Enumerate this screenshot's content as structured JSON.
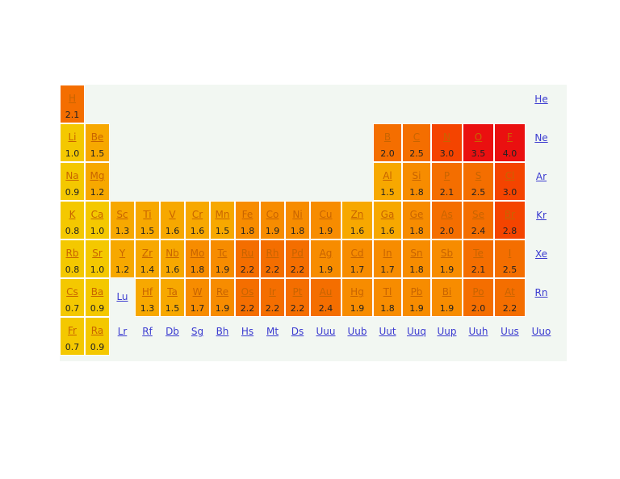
{
  "colors": {
    "link": "#3b3bd0",
    "background": "#f2f7f2",
    "scale": [
      "#f4c800",
      "#f7a800",
      "#f78c00",
      "#f46e00",
      "#f44400",
      "#ea1010"
    ]
  },
  "rows": [
    [
      {
        "col": 1,
        "sym": "H",
        "en": "2.1"
      },
      {
        "col": 18,
        "sym": "He"
      }
    ],
    [
      {
        "col": 1,
        "sym": "Li",
        "en": "1.0"
      },
      {
        "col": 2,
        "sym": "Be",
        "en": "1.5"
      },
      {
        "col": 13,
        "sym": "B",
        "en": "2.0"
      },
      {
        "col": 14,
        "sym": "C",
        "en": "2.5"
      },
      {
        "col": 15,
        "sym": "N",
        "en": "3.0"
      },
      {
        "col": 16,
        "sym": "O",
        "en": "3.5"
      },
      {
        "col": 17,
        "sym": "F",
        "en": "4.0"
      },
      {
        "col": 18,
        "sym": "Ne"
      }
    ],
    [
      {
        "col": 1,
        "sym": "Na",
        "en": "0.9"
      },
      {
        "col": 2,
        "sym": "Mg",
        "en": "1.2"
      },
      {
        "col": 13,
        "sym": "Al",
        "en": "1.5"
      },
      {
        "col": 14,
        "sym": "Si",
        "en": "1.8"
      },
      {
        "col": 15,
        "sym": "P",
        "en": "2.1"
      },
      {
        "col": 16,
        "sym": "S",
        "en": "2.5"
      },
      {
        "col": 17,
        "sym": "Cl",
        "en": "3.0"
      },
      {
        "col": 18,
        "sym": "Ar"
      }
    ],
    [
      {
        "col": 1,
        "sym": "K",
        "en": "0.8"
      },
      {
        "col": 2,
        "sym": "Ca",
        "en": "1.0"
      },
      {
        "col": 3,
        "sym": "Sc",
        "en": "1.3"
      },
      {
        "col": 4,
        "sym": "Ti",
        "en": "1.5"
      },
      {
        "col": 5,
        "sym": "V",
        "en": "1.6"
      },
      {
        "col": 6,
        "sym": "Cr",
        "en": "1.6"
      },
      {
        "col": 7,
        "sym": "Mn",
        "en": "1.5"
      },
      {
        "col": 8,
        "sym": "Fe",
        "en": "1.8"
      },
      {
        "col": 9,
        "sym": "Co",
        "en": "1.9"
      },
      {
        "col": 10,
        "sym": "Ni",
        "en": "1.8"
      },
      {
        "col": 11,
        "sym": "Cu",
        "en": "1.9"
      },
      {
        "col": 12,
        "sym": "Zn",
        "en": "1.6"
      },
      {
        "col": 13,
        "sym": "Ga",
        "en": "1.6"
      },
      {
        "col": 14,
        "sym": "Ge",
        "en": "1.8"
      },
      {
        "col": 15,
        "sym": "As",
        "en": "2.0"
      },
      {
        "col": 16,
        "sym": "Se",
        "en": "2.4"
      },
      {
        "col": 17,
        "sym": "Br",
        "en": "2.8"
      },
      {
        "col": 18,
        "sym": "Kr"
      }
    ],
    [
      {
        "col": 1,
        "sym": "Rb",
        "en": "0.8"
      },
      {
        "col": 2,
        "sym": "Sr",
        "en": "1.0"
      },
      {
        "col": 3,
        "sym": "Y",
        "en": "1.2"
      },
      {
        "col": 4,
        "sym": "Zr",
        "en": "1.4"
      },
      {
        "col": 5,
        "sym": "Nb",
        "en": "1.6"
      },
      {
        "col": 6,
        "sym": "Mo",
        "en": "1.8"
      },
      {
        "col": 7,
        "sym": "Tc",
        "en": "1.9"
      },
      {
        "col": 8,
        "sym": "Ru",
        "en": "2.2"
      },
      {
        "col": 9,
        "sym": "Rh",
        "en": "2.2"
      },
      {
        "col": 10,
        "sym": "Pd",
        "en": "2.2"
      },
      {
        "col": 11,
        "sym": "Ag",
        "en": "1.9"
      },
      {
        "col": 12,
        "sym": "Cd",
        "en": "1.7"
      },
      {
        "col": 13,
        "sym": "In",
        "en": "1.7"
      },
      {
        "col": 14,
        "sym": "Sn",
        "en": "1.8"
      },
      {
        "col": 15,
        "sym": "Sb",
        "en": "1.9"
      },
      {
        "col": 16,
        "sym": "Te",
        "en": "2.1"
      },
      {
        "col": 17,
        "sym": "I",
        "en": "2.5"
      },
      {
        "col": 18,
        "sym": "Xe"
      }
    ],
    [
      {
        "col": 1,
        "sym": "Cs",
        "en": "0.7"
      },
      {
        "col": 2,
        "sym": "Ba",
        "en": "0.9"
      },
      {
        "col": 3,
        "sym": "Lu"
      },
      {
        "col": 4,
        "sym": "Hf",
        "en": "1.3"
      },
      {
        "col": 5,
        "sym": "Ta",
        "en": "1.5"
      },
      {
        "col": 6,
        "sym": "W",
        "en": "1.7"
      },
      {
        "col": 7,
        "sym": "Re",
        "en": "1.9"
      },
      {
        "col": 8,
        "sym": "Os",
        "en": "2.2"
      },
      {
        "col": 9,
        "sym": "Ir",
        "en": "2.2"
      },
      {
        "col": 10,
        "sym": "Pt",
        "en": "2.2"
      },
      {
        "col": 11,
        "sym": "Au",
        "en": "2.4"
      },
      {
        "col": 12,
        "sym": "Hg",
        "en": "1.9"
      },
      {
        "col": 13,
        "sym": "Tl",
        "en": "1.8"
      },
      {
        "col": 14,
        "sym": "Pb",
        "en": "1.9"
      },
      {
        "col": 15,
        "sym": "Bi",
        "en": "1.9"
      },
      {
        "col": 16,
        "sym": "Po",
        "en": "2.0"
      },
      {
        "col": 17,
        "sym": "At",
        "en": "2.2"
      },
      {
        "col": 18,
        "sym": "Rn"
      }
    ],
    [
      {
        "col": 1,
        "sym": "Fr",
        "en": "0.7"
      },
      {
        "col": 2,
        "sym": "Ra",
        "en": "0.9"
      },
      {
        "col": 3,
        "sym": "Lr"
      },
      {
        "col": 4,
        "sym": "Rf"
      },
      {
        "col": 5,
        "sym": "Db"
      },
      {
        "col": 6,
        "sym": "Sg"
      },
      {
        "col": 7,
        "sym": "Bh"
      },
      {
        "col": 8,
        "sym": "Hs"
      },
      {
        "col": 9,
        "sym": "Mt"
      },
      {
        "col": 10,
        "sym": "Ds"
      },
      {
        "col": 11,
        "sym": "Uuu"
      },
      {
        "col": 12,
        "sym": "Uub"
      },
      {
        "col": 13,
        "sym": "Uut"
      },
      {
        "col": 14,
        "sym": "Uuq"
      },
      {
        "col": 15,
        "sym": "Uup"
      },
      {
        "col": 16,
        "sym": "Uuh"
      },
      {
        "col": 17,
        "sym": "Uus"
      },
      {
        "col": 18,
        "sym": "Uuo"
      }
    ]
  ]
}
